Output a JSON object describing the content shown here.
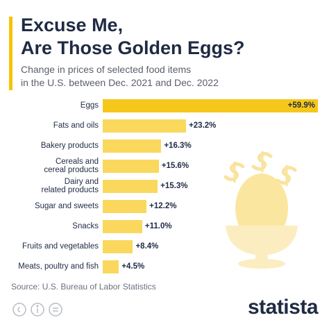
{
  "chart_data": {
    "type": "bar",
    "orientation": "horizontal",
    "title": "Excuse Me,\nAre Those Golden Eggs?",
    "subtitle": "Change in prices of selected food items\nin the U.S. between Dec. 2021 and Dec. 2022",
    "categories": [
      "Eggs",
      "Fats and oils",
      "Bakery products",
      "Cereals and\ncereal products",
      "Dairy and\nrelated products",
      "Sugar and sweets",
      "Snacks",
      "Fruits and vegetables",
      "Meats, poultry and fish"
    ],
    "values": [
      59.9,
      23.2,
      16.3,
      15.6,
      15.3,
      12.2,
      11.0,
      8.4,
      4.5
    ],
    "value_labels": [
      "+59.9%",
      "+23.2%",
      "+16.3%",
      "+15.6%",
      "+15.3%",
      "+12.2%",
      "+11.0%",
      "+8.4%",
      "+4.5%"
    ],
    "colors": [
      "#f5c71a",
      "#fad85e",
      "#fad85e",
      "#fad85e",
      "#fad85e",
      "#fad85e",
      "#fad85e",
      "#fad85e",
      "#fad85e"
    ],
    "source": "Source: U.S. Bureau of Labor Statistics",
    "brand": "statista"
  }
}
